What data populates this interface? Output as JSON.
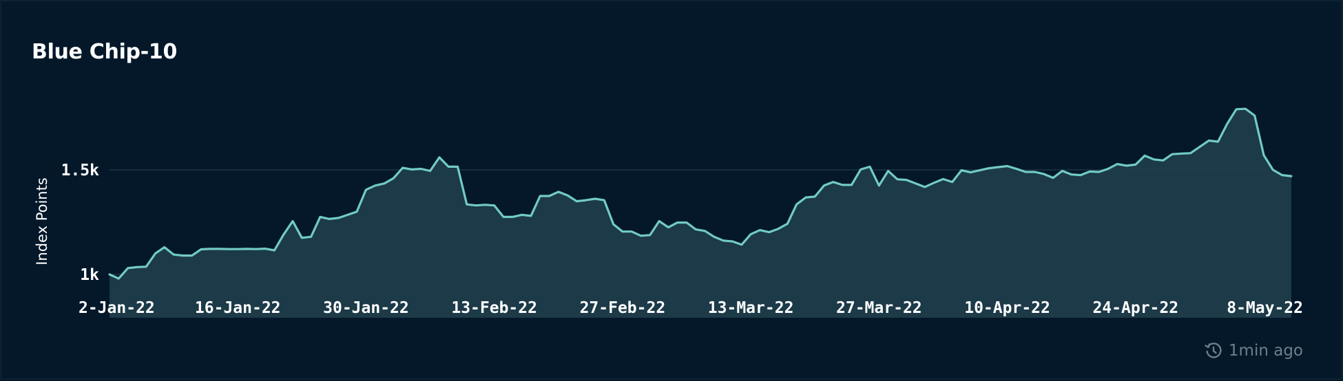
{
  "header": {
    "title": "Blue Chip-10"
  },
  "footer": {
    "updated": "1min ago",
    "icon": "refresh-clock-icon"
  },
  "colors": {
    "background": "#04182a",
    "line": "#72cbc6",
    "area": "#1f3e4b",
    "grid": "#1d3545",
    "text": "#ffffff",
    "muted": "#6e7f8c"
  },
  "chart_data": {
    "type": "area",
    "title": "Blue Chip-10",
    "xlabel": "",
    "ylabel": "Index Points",
    "x_start": "2022-01-02",
    "x_step_days": 1,
    "xlim": [
      "2022-01-02",
      "2022-05-08"
    ],
    "ylim": [
      950,
      1800
    ],
    "grid": true,
    "yticks": [
      {
        "value": 1000,
        "label": "1k"
      },
      {
        "value": 1500,
        "label": "1.5k"
      }
    ],
    "xticks": [
      {
        "date": "2022-01-02",
        "label": "2-Jan-22"
      },
      {
        "date": "2022-01-16",
        "label": "16-Jan-22"
      },
      {
        "date": "2022-01-30",
        "label": "30-Jan-22"
      },
      {
        "date": "2022-02-13",
        "label": "13-Feb-22"
      },
      {
        "date": "2022-02-27",
        "label": "27-Feb-22"
      },
      {
        "date": "2022-03-13",
        "label": "13-Mar-22"
      },
      {
        "date": "2022-03-27",
        "label": "27-Mar-22"
      },
      {
        "date": "2022-04-10",
        "label": "10-Apr-22"
      },
      {
        "date": "2022-04-24",
        "label": "24-Apr-22"
      },
      {
        "date": "2022-05-08",
        "label": "8-May-22"
      }
    ],
    "series": [
      {
        "name": "",
        "values": [
          1000,
          980,
          1030,
          1035,
          1037,
          1100,
          1130,
          1095,
          1090,
          1090,
          1120,
          1122,
          1122,
          1121,
          1121,
          1122,
          1121,
          1123,
          1115,
          1190,
          1255,
          1175,
          1180,
          1275,
          1265,
          1270,
          1285,
          1300,
          1405,
          1425,
          1435,
          1460,
          1510,
          1502,
          1505,
          1495,
          1560,
          1515,
          1515,
          1335,
          1330,
          1333,
          1330,
          1275,
          1275,
          1285,
          1280,
          1375,
          1375,
          1395,
          1378,
          1350,
          1355,
          1362,
          1355,
          1240,
          1205,
          1205,
          1185,
          1188,
          1255,
          1225,
          1248,
          1248,
          1215,
          1208,
          1180,
          1162,
          1158,
          1142,
          1192,
          1212,
          1202,
          1218,
          1242,
          1335,
          1368,
          1372,
          1425,
          1442,
          1428,
          1428,
          1502,
          1515,
          1425,
          1495,
          1455,
          1452,
          1435,
          1418,
          1438,
          1456,
          1442,
          1498,
          1488,
          1498,
          1508,
          1513,
          1518,
          1505,
          1490,
          1490,
          1480,
          1462,
          1495,
          1478,
          1475,
          1492,
          1490,
          1505,
          1528,
          1520,
          1525,
          1568,
          1550,
          1545,
          1575,
          1578,
          1580,
          1610,
          1640,
          1635,
          1720,
          1790,
          1792,
          1760,
          1570,
          1500,
          1475,
          1470
        ]
      }
    ]
  }
}
